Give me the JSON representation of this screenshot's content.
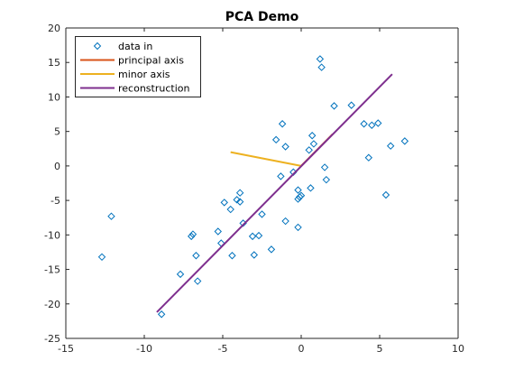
{
  "chart_data": {
    "type": "scatter",
    "title": "PCA Demo",
    "xlabel": "",
    "ylabel": "",
    "xlim": [
      -15,
      10
    ],
    "ylim": [
      -25,
      20
    ],
    "xticks": [
      -15,
      -10,
      -5,
      0,
      5,
      10
    ],
    "yticks": [
      -25,
      -20,
      -15,
      -10,
      -5,
      0,
      5,
      10,
      15,
      20
    ],
    "xtick_labels": [
      "-15",
      "-10",
      "-5",
      "0",
      "5",
      "10"
    ],
    "ytick_labels": [
      "-25",
      "-20",
      "-15",
      "-10",
      "-5",
      "0",
      "5",
      "10",
      "15",
      "20"
    ],
    "grid": false,
    "legend_position": "top-left",
    "legend": [
      "data in",
      "principal axis",
      "minor axis",
      "reconstruction"
    ],
    "series": [
      {
        "name": "data in",
        "type": "scatter",
        "marker": "diamond",
        "color": "#0072BD",
        "points": [
          [
            -12.7,
            -13.2
          ],
          [
            -12.1,
            -7.3
          ],
          [
            -8.9,
            -21.5
          ],
          [
            -7.7,
            -15.7
          ],
          [
            -7.0,
            -10.2
          ],
          [
            -6.9,
            -9.9
          ],
          [
            -6.7,
            -13.0
          ],
          [
            -6.6,
            -16.7
          ],
          [
            -5.3,
            -9.5
          ],
          [
            -5.1,
            -11.2
          ],
          [
            -4.9,
            -5.3
          ],
          [
            -4.5,
            -6.3
          ],
          [
            -4.4,
            -13.0
          ],
          [
            -4.1,
            -4.9
          ],
          [
            -3.9,
            -3.9
          ],
          [
            -3.9,
            -5.2
          ],
          [
            -3.7,
            -8.3
          ],
          [
            -3.1,
            -10.2
          ],
          [
            -3.0,
            -12.9
          ],
          [
            -2.7,
            -10.1
          ],
          [
            -2.5,
            -7.0
          ],
          [
            -1.9,
            -12.1
          ],
          [
            -1.6,
            3.8
          ],
          [
            -1.3,
            -1.5
          ],
          [
            -1.2,
            6.1
          ],
          [
            -1.0,
            2.8
          ],
          [
            -1.0,
            -8.0
          ],
          [
            -0.5,
            -0.9
          ],
          [
            -0.2,
            -8.9
          ],
          [
            -0.2,
            -3.5
          ],
          [
            -0.2,
            -4.8
          ],
          [
            -0.1,
            -4.5
          ],
          [
            0.0,
            -4.3
          ],
          [
            0.5,
            2.3
          ],
          [
            0.6,
            -3.2
          ],
          [
            0.7,
            4.4
          ],
          [
            0.8,
            3.2
          ],
          [
            1.2,
            15.5
          ],
          [
            1.3,
            14.3
          ],
          [
            1.5,
            -0.2
          ],
          [
            1.6,
            -2.0
          ],
          [
            2.1,
            8.7
          ],
          [
            3.2,
            8.8
          ],
          [
            4.0,
            6.1
          ],
          [
            4.3,
            1.2
          ],
          [
            4.5,
            5.9
          ],
          [
            4.9,
            6.2
          ],
          [
            5.4,
            -4.2
          ],
          [
            5.7,
            2.9
          ],
          [
            6.6,
            3.6
          ]
        ]
      },
      {
        "name": "principal axis",
        "type": "line",
        "color": "#D95319",
        "points": [
          [
            0.0,
            0.0
          ],
          [
            2.0,
            4.6
          ]
        ]
      },
      {
        "name": "minor axis",
        "type": "line",
        "color": "#EDB120",
        "points": [
          [
            -4.5,
            2.0
          ],
          [
            0.0,
            0.0
          ]
        ]
      },
      {
        "name": "reconstruction",
        "type": "line",
        "color": "#7E2F8E",
        "points": [
          [
            -9.2,
            -21.2
          ],
          [
            5.8,
            13.3
          ]
        ]
      }
    ]
  }
}
